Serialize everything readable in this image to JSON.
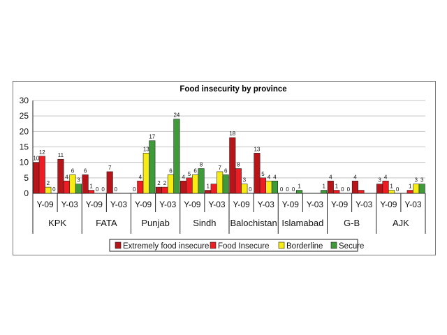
{
  "chart_data": {
    "type": "bar",
    "title": "Food insecurity by province",
    "xlabel": "",
    "ylabel": "",
    "ylim": [
      0,
      30
    ],
    "yticks": [
      "0",
      "5",
      "10",
      "15",
      "20",
      "25",
      "30"
    ],
    "grid": true,
    "legend_position": "bottom",
    "groups": [
      "KPK",
      "FATA",
      "Punjab",
      "Sindh",
      "Balochistan",
      "Islamabad",
      "G-B",
      "AJK"
    ],
    "subcategories": [
      "Y-09",
      "Y-03"
    ],
    "categories": [
      "KPK Y-09",
      "KPK Y-03",
      "FATA Y-09",
      "FATA Y-03",
      "Punjab Y-09",
      "Punjab Y-03",
      "Sindh Y-09",
      "Sindh Y-03",
      "Balochistan Y-09",
      "Balochistan Y-03",
      "Islamabad Y-09",
      "Islamabad Y-03",
      "G-B Y-09",
      "G-B Y-03",
      "AJK Y-09",
      "AJK Y-03"
    ],
    "series": [
      {
        "name": "Extremely food insecure",
        "color": "#b8151b",
        "values": [
          10,
          11,
          6,
          7,
          null,
          2,
          4,
          1,
          18,
          13,
          null,
          null,
          4,
          4,
          3,
          null
        ],
        "labels": [
          "10",
          "11",
          "6",
          "7",
          "0",
          "2",
          "4",
          "1",
          "18",
          "13",
          "0",
          "",
          "4",
          "4",
          "3",
          ""
        ]
      },
      {
        "name": "Food Insecure",
        "color": "#ee1d23",
        "values": [
          12,
          4,
          1,
          null,
          4,
          2,
          5,
          3,
          8,
          5,
          null,
          null,
          1,
          1,
          4,
          1
        ],
        "labels": [
          "12",
          "4",
          "1",
          "0",
          "4",
          "2",
          "5",
          "",
          "8",
          "5",
          "0",
          "",
          "1",
          "",
          "4",
          "1"
        ]
      },
      {
        "name": "Borderline",
        "color": "#f7ec13",
        "values": [
          2,
          6,
          null,
          null,
          13,
          6,
          6,
          7,
          3,
          4,
          null,
          null,
          null,
          null,
          1,
          3
        ],
        "labels": [
          "2",
          "6",
          "0",
          "",
          "13",
          "6",
          "6",
          "7",
          "3",
          "4",
          "0",
          "",
          "0",
          "",
          "1",
          "3"
        ]
      },
      {
        "name": "Secure",
        "color": "#3f9a3a",
        "values": [
          null,
          3,
          null,
          null,
          17,
          24,
          8,
          6,
          null,
          4,
          1,
          1,
          null,
          null,
          null,
          3
        ],
        "labels": [
          "0",
          "3",
          "0",
          "",
          "17",
          "24",
          "8",
          "6",
          "0",
          "4",
          "1",
          "1",
          "0",
          "",
          "0",
          "3"
        ]
      }
    ]
  }
}
